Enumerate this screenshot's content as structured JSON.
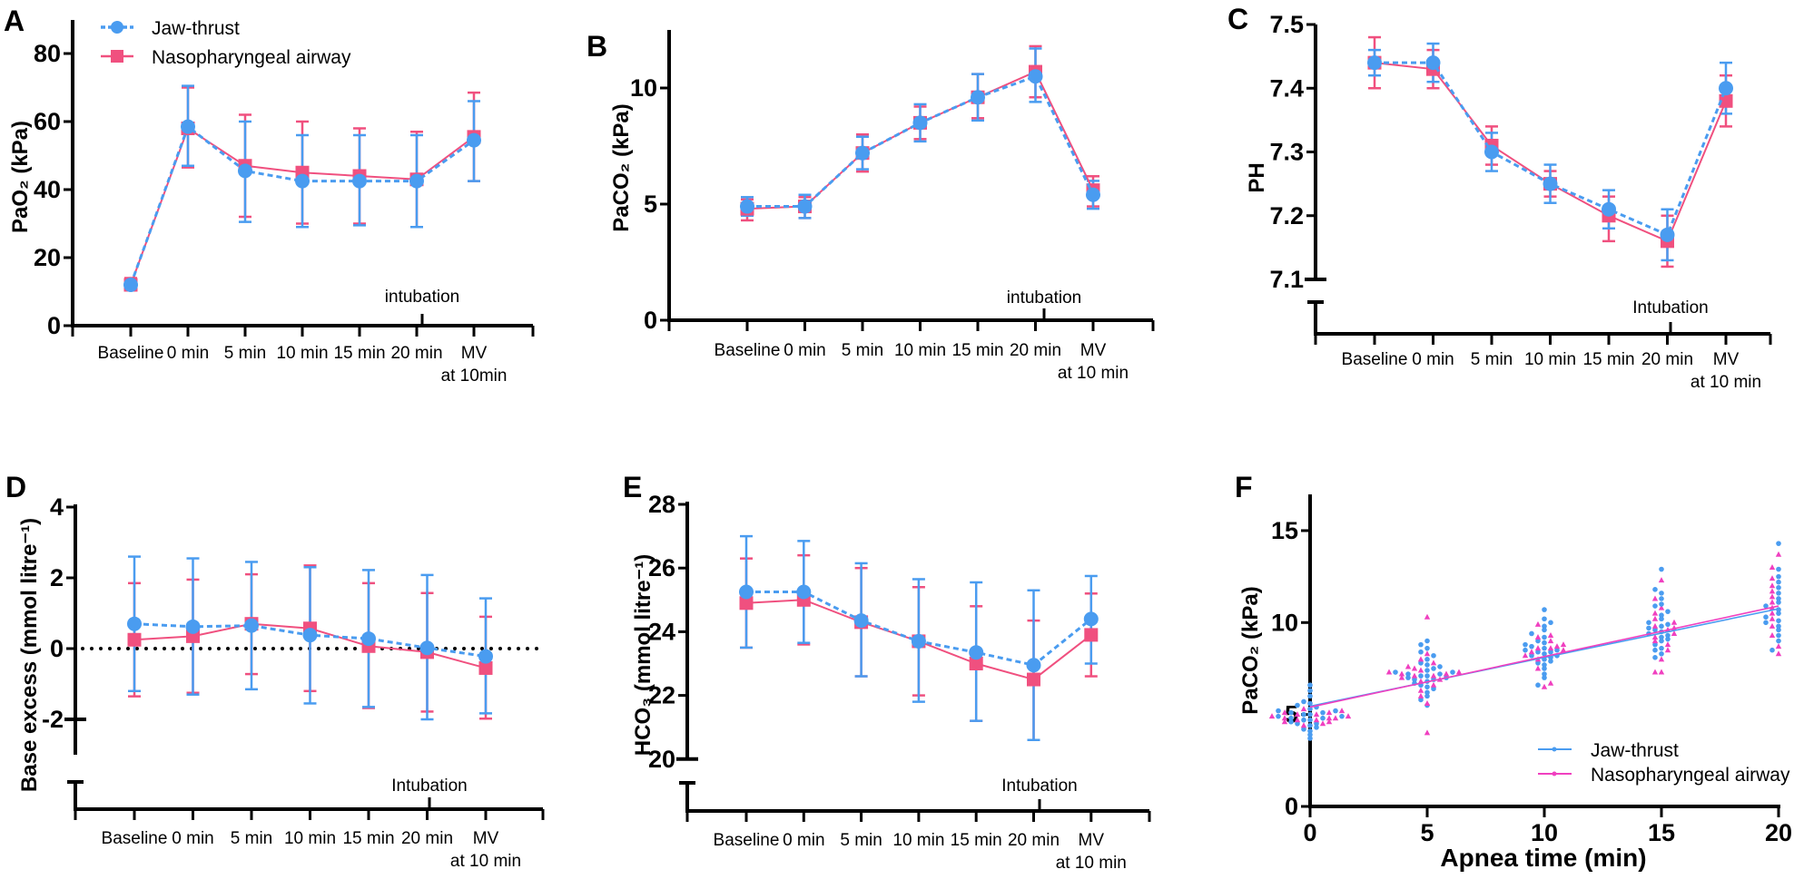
{
  "legend": {
    "series": [
      {
        "name": "Jaw-thrust",
        "color": "#4a9cf0",
        "marker": "circle",
        "line": "dashed"
      },
      {
        "name": "Nasopharyngeal airway",
        "color": "#f0507f",
        "marker": "square",
        "line": "solid"
      }
    ]
  },
  "chart_data": [
    {
      "panel": "A",
      "type": "line",
      "ylabel": "PaO₂ (kPa)",
      "ylim": [
        0,
        90
      ],
      "yticks": [
        0,
        20,
        40,
        60,
        80
      ],
      "categories": [
        "Baseline",
        "0 min",
        "5 min",
        "10 min",
        "15 min",
        "20 min",
        "MV"
      ],
      "mv_sub": "at 10min",
      "annotation": "intubation",
      "series": [
        {
          "name": "Jaw-thrust",
          "color": "#4a9cf0",
          "mean": [
            12,
            58.5,
            45.5,
            42.5,
            42.5,
            42.5,
            54.5
          ],
          "lower": [
            11,
            47,
            30.5,
            29,
            29.5,
            29,
            42.5
          ],
          "upper": [
            13,
            70.5,
            60,
            56,
            56,
            56,
            66
          ]
        },
        {
          "name": "Nasopharyngeal airway",
          "color": "#f0507f",
          "mean": [
            12,
            58,
            47,
            45,
            44,
            43,
            55.5
          ],
          "lower": [
            11,
            46.5,
            32,
            30,
            30,
            29,
            42.5
          ],
          "upper": [
            14,
            70,
            62,
            60,
            58,
            57,
            68.5
          ]
        }
      ]
    },
    {
      "panel": "B",
      "type": "line",
      "ylabel": "PaCO₂ (kPa)",
      "ylim": [
        0,
        12.5
      ],
      "yticks": [
        0,
        5,
        10
      ],
      "categories": [
        "Baseline",
        "0 min",
        "5 min",
        "10 min",
        "15 min",
        "20 min",
        "MV"
      ],
      "mv_sub": "at 10 min",
      "annotation": "intubation",
      "series": [
        {
          "name": "Jaw-thrust",
          "color": "#4a9cf0",
          "mean": [
            4.9,
            4.9,
            7.2,
            8.5,
            9.6,
            10.5,
            5.4
          ],
          "lower": [
            4.5,
            4.4,
            6.5,
            7.7,
            8.6,
            9.4,
            4.8
          ],
          "upper": [
            5.3,
            5.4,
            7.9,
            9.3,
            10.6,
            11.7,
            6.0
          ]
        },
        {
          "name": "Nasopharyngeal airway",
          "color": "#f0507f",
          "mean": [
            4.8,
            4.9,
            7.2,
            8.5,
            9.6,
            10.7,
            5.6
          ],
          "lower": [
            4.3,
            4.4,
            6.4,
            7.8,
            8.7,
            9.6,
            4.9
          ],
          "upper": [
            5.2,
            5.3,
            8.0,
            9.2,
            10.6,
            11.8,
            6.2
          ]
        }
      ]
    },
    {
      "panel": "C",
      "type": "line",
      "ylabel": "PH",
      "ylim": [
        7.1,
        7.5
      ],
      "yticks": [
        7.1,
        7.2,
        7.3,
        7.4,
        7.5
      ],
      "axis_break": true,
      "categories": [
        "Baseline",
        "0 min",
        "5 min",
        "10 min",
        "15 min",
        "20 min",
        "MV"
      ],
      "mv_sub": "at 10 min",
      "annotation": "Intubation",
      "series": [
        {
          "name": "Jaw-thrust",
          "color": "#4a9cf0",
          "mean": [
            7.44,
            7.44,
            7.3,
            7.25,
            7.21,
            7.17,
            7.4
          ],
          "lower": [
            7.42,
            7.41,
            7.27,
            7.22,
            7.18,
            7.13,
            7.36
          ],
          "upper": [
            7.46,
            7.47,
            7.33,
            7.28,
            7.24,
            7.21,
            7.44
          ]
        },
        {
          "name": "Nasopharyngeal airway",
          "color": "#f0507f",
          "mean": [
            7.44,
            7.43,
            7.31,
            7.25,
            7.2,
            7.16,
            7.38
          ],
          "lower": [
            7.4,
            7.4,
            7.28,
            7.23,
            7.16,
            7.12,
            7.34
          ],
          "upper": [
            7.48,
            7.46,
            7.34,
            7.27,
            7.23,
            7.2,
            7.42
          ]
        }
      ]
    },
    {
      "panel": "D",
      "type": "line",
      "ylabel": "Base excess (mmol litre⁻¹)",
      "ylim": [
        -3,
        4
      ],
      "yticks": [
        -2,
        0,
        2,
        4
      ],
      "axis_break": true,
      "reference_line": 0,
      "categories": [
        "Baseline",
        "0 min",
        "5 min",
        "10 min",
        "15 min",
        "20 min",
        "MV"
      ],
      "mv_sub": "at 10 min",
      "annotation": "Intubation",
      "series": [
        {
          "name": "Jaw-thrust",
          "color": "#4a9cf0",
          "mean": [
            0.7,
            0.62,
            0.65,
            0.38,
            0.28,
            0.02,
            -0.22
          ],
          "lower": [
            -1.2,
            -1.3,
            -1.15,
            -1.55,
            -1.65,
            -2.0,
            -1.83
          ],
          "upper": [
            2.6,
            2.55,
            2.45,
            2.3,
            2.22,
            2.08,
            1.42
          ]
        },
        {
          "name": "Nasopharyngeal airway",
          "color": "#f0507f",
          "mean": [
            0.25,
            0.35,
            0.7,
            0.57,
            0.07,
            -0.1,
            -0.55
          ],
          "lower": [
            -1.35,
            -1.25,
            -0.72,
            -1.2,
            -1.68,
            -1.78,
            -1.98
          ],
          "upper": [
            1.85,
            1.95,
            2.1,
            2.35,
            1.85,
            1.57,
            0.9
          ]
        }
      ]
    },
    {
      "panel": "E",
      "type": "line",
      "ylabel": "HCO₃ (mmol litre⁻¹)",
      "ylim": [
        20,
        28
      ],
      "yticks": [
        20,
        22,
        24,
        26,
        28
      ],
      "axis_break": true,
      "categories": [
        "Baseline",
        "0 min",
        "5 min",
        "10 min",
        "15 min",
        "20 min",
        "MV"
      ],
      "mv_sub": "at 10 min",
      "annotation": "Intubation",
      "series": [
        {
          "name": "Jaw-thrust",
          "color": "#4a9cf0",
          "mean": [
            25.25,
            25.25,
            24.35,
            23.7,
            23.35,
            22.95,
            24.4
          ],
          "lower": [
            23.5,
            23.65,
            22.6,
            21.8,
            21.2,
            20.6,
            23.0
          ],
          "upper": [
            27.0,
            26.85,
            26.15,
            25.65,
            25.55,
            25.3,
            25.75
          ]
        },
        {
          "name": "Nasopharyngeal airway",
          "color": "#f0507f",
          "mean": [
            24.9,
            25.0,
            24.3,
            23.7,
            23.0,
            22.5,
            23.9
          ],
          "lower": [
            23.5,
            23.6,
            22.6,
            22.0,
            21.2,
            20.6,
            22.6
          ],
          "upper": [
            26.3,
            26.4,
            26.0,
            25.4,
            24.8,
            24.35,
            25.2
          ]
        }
      ]
    },
    {
      "panel": "F",
      "type": "scatter",
      "xlabel": "Apnea time (min)",
      "ylabel": "PaCO₂ (kPa)",
      "xlim": [
        0,
        20
      ],
      "ylim": [
        0,
        17
      ],
      "xticks": [
        0,
        5,
        10,
        15,
        20
      ],
      "yticks": [
        0,
        5,
        10,
        15
      ],
      "legend_position": "bottom-right",
      "series": [
        {
          "name": "Jaw-thrust",
          "color": "#4a9cf0",
          "marker": "circle",
          "groups": [
            {
              "x": 0,
              "y": [
                3.7,
                3.9,
                4.1,
                4.2,
                4.3,
                4.4,
                4.5,
                4.5,
                4.6,
                4.7,
                4.7,
                4.8,
                4.8,
                4.9,
                4.9,
                5.0,
                5.0,
                5.1,
                5.1,
                5.2,
                5.2,
                5.3,
                5.4,
                5.5,
                5.6,
                5.7,
                6.0,
                6.3,
                6.6
              ]
            },
            {
              "x": 5,
              "y": [
                5.5,
                5.8,
                6.0,
                6.2,
                6.4,
                6.5,
                6.6,
                6.7,
                6.8,
                6.9,
                6.9,
                7.0,
                7.0,
                7.1,
                7.1,
                7.2,
                7.2,
                7.3,
                7.3,
                7.4,
                7.5,
                7.6,
                7.7,
                7.8,
                8.0,
                8.2,
                8.4,
                8.6,
                8.8,
                9.0
              ]
            },
            {
              "x": 10,
              "y": [
                6.6,
                7.0,
                7.2,
                7.5,
                7.7,
                7.8,
                7.9,
                8.0,
                8.1,
                8.2,
                8.2,
                8.3,
                8.4,
                8.4,
                8.5,
                8.5,
                8.6,
                8.7,
                8.8,
                8.9,
                9.0,
                9.2,
                9.4,
                9.6,
                9.8,
                10.0,
                10.2,
                10.7
              ]
            },
            {
              "x": 15,
              "y": [
                8.1,
                8.3,
                8.5,
                8.6,
                8.8,
                9.0,
                9.1,
                9.2,
                9.3,
                9.4,
                9.5,
                9.6,
                9.7,
                9.8,
                9.9,
                10.0,
                10.2,
                10.4,
                10.6,
                10.9,
                11.0,
                11.3,
                11.6,
                11.8,
                12.9
              ]
            },
            {
              "x": 20,
              "y": [
                8.5,
                9.0,
                9.3,
                9.6,
                9.8,
                10.0,
                10.1,
                10.3,
                10.5,
                10.7,
                10.9,
                11.1,
                11.3,
                11.6,
                11.9,
                12.2,
                12.5,
                12.9,
                14.3
              ]
            }
          ],
          "fit": {
            "x": [
              0,
              20
            ],
            "y": [
              5.45,
              10.75
            ]
          }
        },
        {
          "name": "Nasopharyngeal airway",
          "color": "#f040c0",
          "marker": "triangle",
          "groups": [
            {
              "x": 0,
              "y": [
                4.4,
                4.5,
                4.6,
                4.6,
                4.7,
                4.7,
                4.8,
                4.8,
                4.8,
                4.9,
                4.9,
                5.0,
                5.0,
                5.1,
                5.1,
                5.2,
                5.3
              ]
            },
            {
              "x": 5,
              "y": [
                4.0,
                5.6,
                6.0,
                6.3,
                6.6,
                6.8,
                6.9,
                7.0,
                7.1,
                7.1,
                7.2,
                7.2,
                7.3,
                7.3,
                7.4,
                7.5,
                7.6,
                7.8,
                8.0,
                8.3,
                10.3
              ]
            },
            {
              "x": 10,
              "y": [
                6.5,
                6.7,
                7.5,
                8.0,
                8.2,
                8.4,
                8.5,
                8.6,
                8.6,
                8.7,
                8.8,
                9.0,
                9.2,
                9.3,
                9.9
              ]
            },
            {
              "x": 15,
              "y": [
                7.3,
                7.3,
                8.0,
                8.5,
                8.8,
                9.0,
                9.2,
                9.4,
                9.6,
                9.7,
                9.8,
                10.0,
                10.2,
                10.5,
                10.8,
                11.3,
                12.3
              ]
            },
            {
              "x": 20,
              "y": [
                8.3,
                8.7,
                9.3,
                9.8,
                10.2,
                10.5,
                10.8,
                11.1,
                11.4,
                11.7,
                12.0,
                12.4,
                13.0,
                13.7
              ]
            }
          ],
          "fit": {
            "x": [
              0,
              20
            ],
            "y": [
              5.4,
              10.9
            ]
          }
        }
      ]
    }
  ]
}
